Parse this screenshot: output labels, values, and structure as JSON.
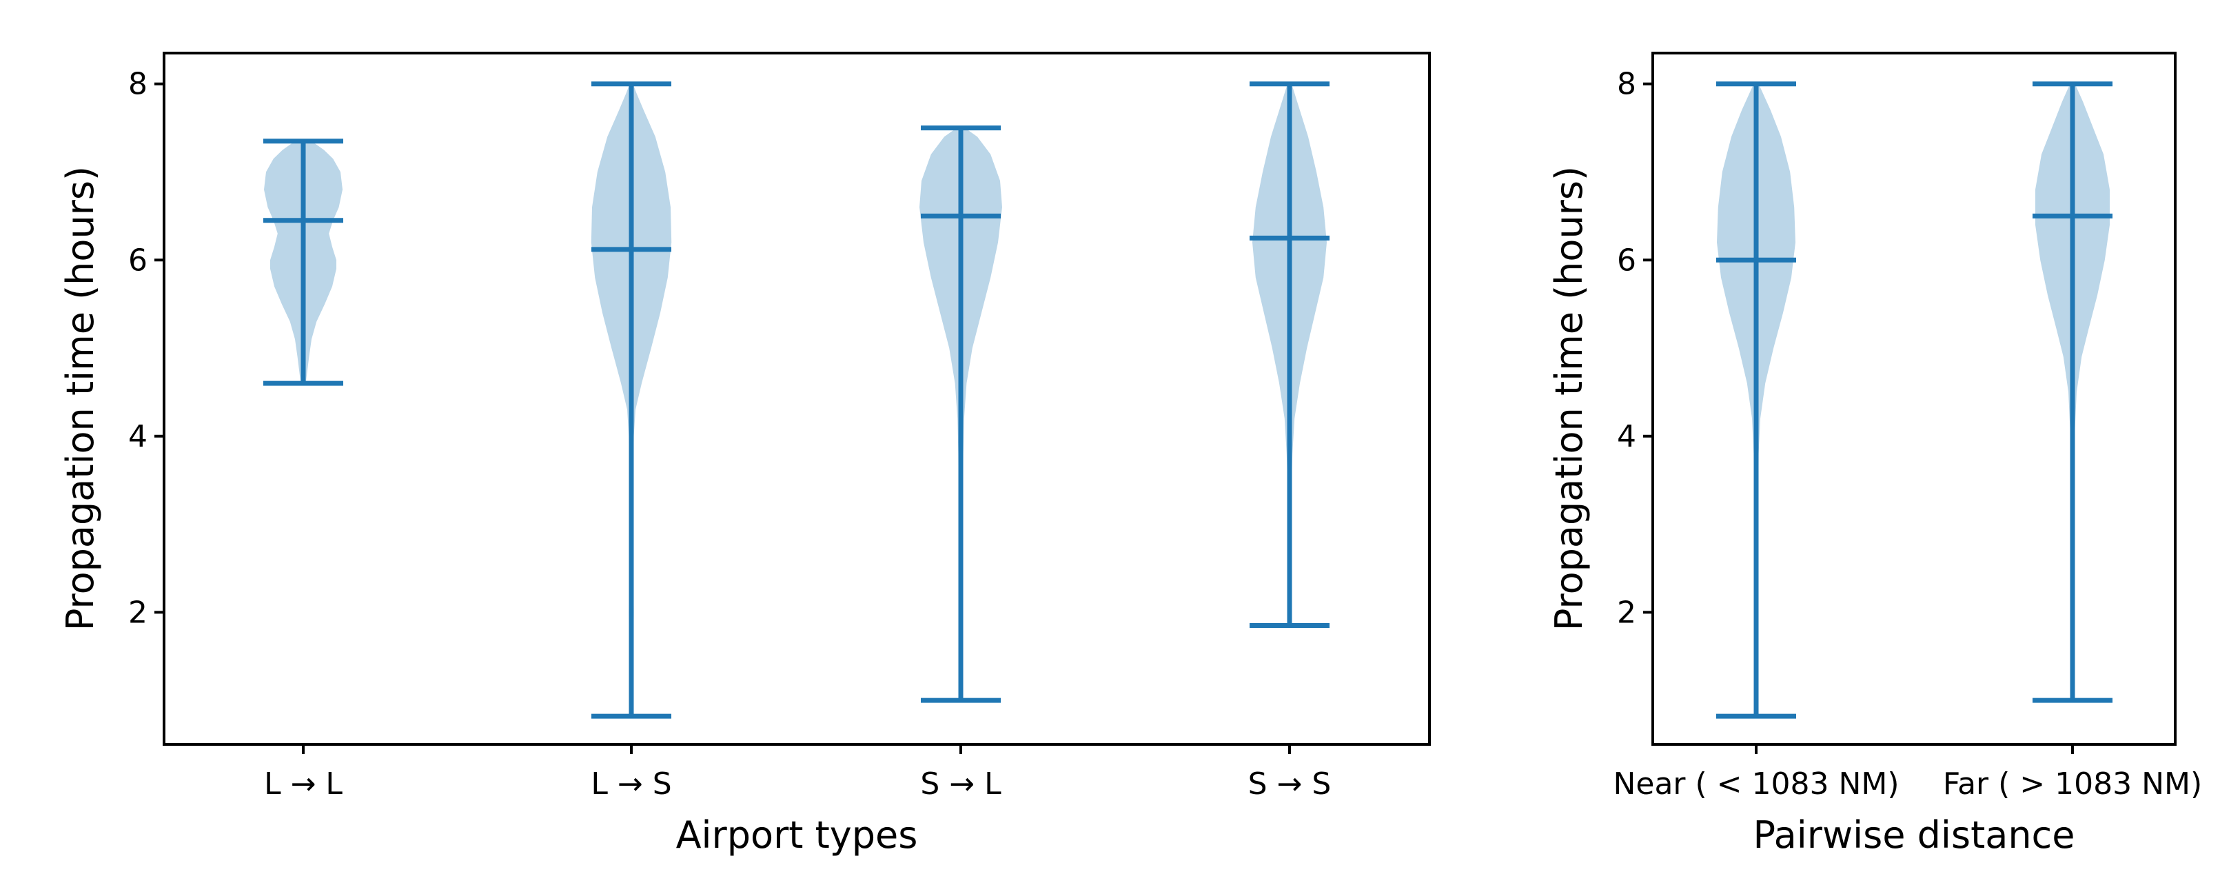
{
  "chart_data": [
    {
      "type": "violin",
      "title": "",
      "xlabel": "Airport types",
      "ylabel": "Propagation time (hours)",
      "ylim": [
        0.5,
        8.35
      ],
      "yticks": [
        2,
        4,
        6,
        8
      ],
      "grid": false,
      "categories": [
        "L → L",
        "L → S",
        "S → L",
        "S → S"
      ],
      "color": "#1f77b4",
      "violins": [
        {
          "min": 4.6,
          "median": 6.45,
          "max": 7.35,
          "density": [
            [
              4.6,
              0.06
            ],
            [
              4.75,
              0.1
            ],
            [
              4.9,
              0.14
            ],
            [
              5.1,
              0.2
            ],
            [
              5.3,
              0.32
            ],
            [
              5.5,
              0.52
            ],
            [
              5.7,
              0.7
            ],
            [
              5.9,
              0.8
            ],
            [
              6.0,
              0.8
            ],
            [
              6.15,
              0.7
            ],
            [
              6.3,
              0.62
            ],
            [
              6.45,
              0.72
            ],
            [
              6.6,
              0.86
            ],
            [
              6.8,
              0.95
            ],
            [
              7.0,
              0.9
            ],
            [
              7.15,
              0.72
            ],
            [
              7.25,
              0.5
            ],
            [
              7.35,
              0.2
            ]
          ]
        },
        {
          "min": 0.82,
          "median": 6.12,
          "max": 8.0,
          "density": [
            [
              0.82,
              0.03
            ],
            [
              1.5,
              0.05
            ],
            [
              2.0,
              0.06
            ],
            [
              2.5,
              0.05
            ],
            [
              3.0,
              0.05
            ],
            [
              3.5,
              0.05
            ],
            [
              4.0,
              0.06
            ],
            [
              4.3,
              0.1
            ],
            [
              4.6,
              0.25
            ],
            [
              5.0,
              0.48
            ],
            [
              5.4,
              0.7
            ],
            [
              5.8,
              0.88
            ],
            [
              6.2,
              0.97
            ],
            [
              6.6,
              0.95
            ],
            [
              7.0,
              0.82
            ],
            [
              7.4,
              0.58
            ],
            [
              7.7,
              0.3
            ],
            [
              7.9,
              0.12
            ],
            [
              8.0,
              0.04
            ]
          ]
        },
        {
          "min": 1.0,
          "median": 6.5,
          "max": 7.5,
          "density": [
            [
              1.0,
              0.04
            ],
            [
              2.0,
              0.05
            ],
            [
              3.0,
              0.05
            ],
            [
              3.8,
              0.06
            ],
            [
              4.2,
              0.08
            ],
            [
              4.6,
              0.14
            ],
            [
              5.0,
              0.28
            ],
            [
              5.4,
              0.5
            ],
            [
              5.8,
              0.72
            ],
            [
              6.2,
              0.9
            ],
            [
              6.6,
              1.0
            ],
            [
              6.9,
              0.95
            ],
            [
              7.2,
              0.72
            ],
            [
              7.4,
              0.4
            ],
            [
              7.5,
              0.1
            ]
          ]
        },
        {
          "min": 1.85,
          "median": 6.25,
          "max": 8.0,
          "density": [
            [
              1.85,
              0.03
            ],
            [
              2.5,
              0.04
            ],
            [
              3.0,
              0.05
            ],
            [
              3.5,
              0.05
            ],
            [
              3.8,
              0.07
            ],
            [
              4.2,
              0.12
            ],
            [
              4.6,
              0.25
            ],
            [
              5.0,
              0.42
            ],
            [
              5.4,
              0.62
            ],
            [
              5.8,
              0.82
            ],
            [
              6.2,
              0.9
            ],
            [
              6.6,
              0.82
            ],
            [
              7.0,
              0.65
            ],
            [
              7.4,
              0.45
            ],
            [
              7.7,
              0.25
            ],
            [
              8.0,
              0.05
            ]
          ]
        }
      ]
    },
    {
      "type": "violin",
      "title": "",
      "xlabel": "Pairwise distance",
      "ylabel": "Propagation time (hours)",
      "ylim": [
        0.5,
        8.35
      ],
      "yticks": [
        2,
        4,
        6,
        8
      ],
      "grid": false,
      "categories": [
        "Near ( < 1083 NM)",
        "Far ( > 1083 NM)"
      ],
      "color": "#1f77b4",
      "violins": [
        {
          "min": 0.82,
          "median": 6.0,
          "max": 8.0,
          "density": [
            [
              0.82,
              0.04
            ],
            [
              2.0,
              0.05
            ],
            [
              3.0,
              0.05
            ],
            [
              3.8,
              0.06
            ],
            [
              4.2,
              0.1
            ],
            [
              4.6,
              0.22
            ],
            [
              5.0,
              0.42
            ],
            [
              5.4,
              0.65
            ],
            [
              5.8,
              0.85
            ],
            [
              6.2,
              0.95
            ],
            [
              6.6,
              0.92
            ],
            [
              7.0,
              0.82
            ],
            [
              7.4,
              0.6
            ],
            [
              7.7,
              0.35
            ],
            [
              8.0,
              0.06
            ]
          ]
        },
        {
          "min": 1.0,
          "median": 6.5,
          "max": 8.0,
          "density": [
            [
              1.0,
              0.04
            ],
            [
              2.0,
              0.05
            ],
            [
              3.0,
              0.05
            ],
            [
              4.0,
              0.05
            ],
            [
              4.5,
              0.1
            ],
            [
              4.9,
              0.22
            ],
            [
              5.2,
              0.38
            ],
            [
              5.6,
              0.6
            ],
            [
              6.0,
              0.78
            ],
            [
              6.4,
              0.9
            ],
            [
              6.8,
              0.9
            ],
            [
              7.2,
              0.75
            ],
            [
              7.5,
              0.5
            ],
            [
              7.8,
              0.25
            ],
            [
              8.0,
              0.06
            ]
          ]
        }
      ]
    }
  ]
}
